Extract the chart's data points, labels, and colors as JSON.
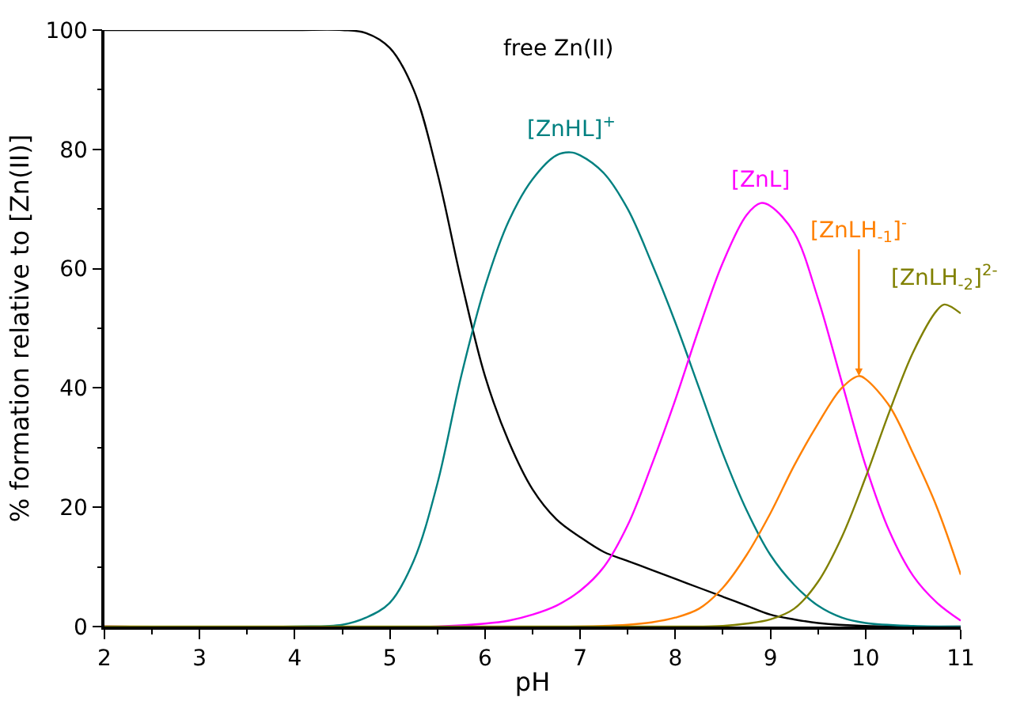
{
  "chart_data": {
    "type": "line",
    "xlabel": "pH",
    "ylabel": "% formation relative to [Zn(II)]",
    "xlim": [
      2,
      11
    ],
    "ylim": [
      0,
      100
    ],
    "xticks": [
      2,
      3,
      4,
      5,
      6,
      7,
      8,
      9,
      10,
      11
    ],
    "yticks": [
      0,
      20,
      40,
      60,
      80,
      100
    ],
    "grid": false,
    "legend": false,
    "marker": "none",
    "line_style": "solid",
    "series": [
      {
        "name": "free Zn(II)",
        "color": "#000000",
        "x": [
          2,
          3,
          4,
          4.5,
          4.75,
          5,
          5.25,
          5.5,
          5.75,
          6,
          6.25,
          6.5,
          6.75,
          7,
          7.25,
          7.5,
          7.75,
          8,
          8.25,
          8.5,
          8.75,
          9,
          9.25,
          9.5,
          10,
          11
        ],
        "values": [
          100,
          100,
          100,
          100,
          99.5,
          97,
          90,
          76,
          58,
          42,
          31,
          23,
          18,
          15,
          12.5,
          11,
          9.5,
          8,
          6.5,
          5,
          3.5,
          2,
          1.2,
          0.6,
          0.1,
          0
        ]
      },
      {
        "name": "[ZnHL]$^{+}$",
        "color": "#008080",
        "x": [
          2,
          4,
          4.5,
          4.75,
          5,
          5.25,
          5.5,
          5.75,
          6,
          6.25,
          6.5,
          6.75,
          6.9,
          7,
          7.25,
          7.5,
          7.75,
          8,
          8.25,
          8.5,
          8.75,
          9,
          9.25,
          9.5,
          9.75,
          10,
          10.5,
          11
        ],
        "values": [
          0,
          0,
          0.3,
          1.5,
          4,
          11,
          24,
          42,
          57,
          68,
          75,
          79,
          79.5,
          79,
          76,
          70,
          61,
          51,
          40,
          29,
          19.5,
          12,
          7,
          3.5,
          1.5,
          0.6,
          0.1,
          0
        ]
      },
      {
        "name": "[ZnL]",
        "color": "#ff00ff",
        "x": [
          2,
          5.5,
          6,
          6.25,
          6.5,
          6.75,
          7,
          7.25,
          7.5,
          7.75,
          8,
          8.25,
          8.5,
          8.75,
          8.9,
          9,
          9.25,
          9.5,
          9.75,
          10,
          10.25,
          10.5,
          10.75,
          11
        ],
        "values": [
          0,
          0,
          0.5,
          1,
          2,
          3.5,
          6,
          10,
          17,
          27,
          38,
          50,
          61,
          69,
          71,
          70.5,
          66,
          55,
          41,
          27,
          16,
          8.5,
          4,
          1
        ]
      },
      {
        "color": "#ff8000",
        "x": [
          2,
          7,
          7.5,
          7.75,
          8,
          8.25,
          8.5,
          8.75,
          9,
          9.25,
          9.5,
          9.75,
          9.93,
          10,
          10.25,
          10.5,
          10.75,
          11
        ],
        "values": [
          0,
          0,
          0.3,
          0.7,
          1.5,
          3,
          6.5,
          12,
          19,
          27,
          34,
          40,
          42,
          41.5,
          37,
          29,
          20,
          8.7
        ]
      },
      {
        "name": "[ZnLH$_{-2}$]$^{2-}$",
        "color": "#808000",
        "x": [
          2,
          8,
          8.5,
          8.75,
          9,
          9.25,
          9.5,
          9.75,
          10,
          10.25,
          10.5,
          10.75,
          10.83,
          11
        ],
        "values": [
          0,
          0,
          0.1,
          0.5,
          1.2,
          3,
          7.5,
          15,
          25,
          36,
          46,
          53,
          54,
          52.5
        ]
      }
    ],
    "annotations": [
      {
        "text": "[ZnLH$_{-1}$]$^{-}$",
        "x": 9.93,
        "y": 42
      }
    ]
  }
}
